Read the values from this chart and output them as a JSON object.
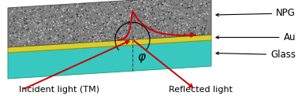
{
  "fig_width": 3.78,
  "fig_height": 1.22,
  "dpi": 100,
  "bg_color": "#ffffff",
  "glass_color": "#38c8c0",
  "glass_edge_color": "#20a090",
  "au_color": "#d8ce28",
  "au_edge_color": "#a09000",
  "npg_base_color": "#808080",
  "npg_edge_color": "#505050",
  "label_incident": "Incident light (TM)",
  "label_reflected": "Reflected light",
  "label_npg": "NPG",
  "label_au": "Au",
  "label_glass": "Glass",
  "label_phi": "φ",
  "text_fontsize": 8.0,
  "label_fontsize": 8.5,
  "red_color": "#cc0000",
  "black_color": "#000000",
  "dashed_color": "#444444"
}
